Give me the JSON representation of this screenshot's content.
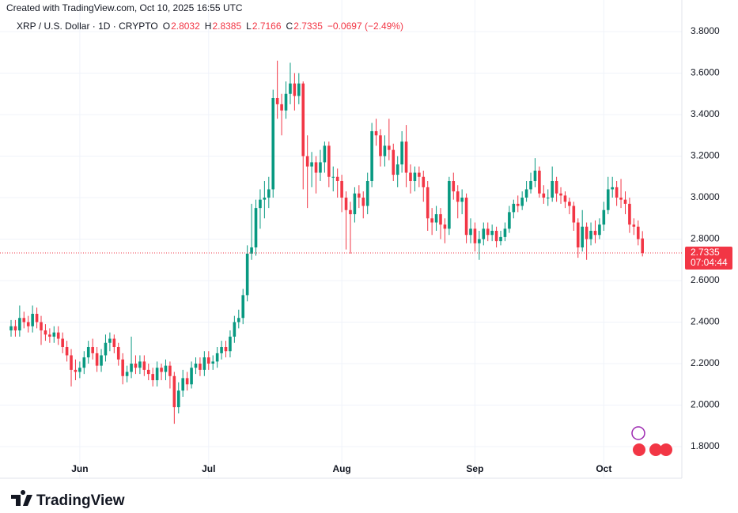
{
  "chart_data": {
    "type": "candlestick",
    "watermark": "Created with TradingView.com, Oct 10, 2025 16:55 UTC",
    "symbol": "XRP / U.S. Dollar · 1D · CRYPTO",
    "ohlc_keys": [
      "O",
      "H",
      "L",
      "C"
    ],
    "change": "−0.0697 (−2.49%)",
    "countdown": "07:04:44",
    "logo": "TradingView",
    "up_color": "#089981",
    "down_color": "#f23645",
    "grid": true,
    "ylim": [
      1.72,
      3.87
    ],
    "yticks": [
      {
        "value": 1.8,
        "label": "1.8000"
      },
      {
        "value": 2.0,
        "label": "2.0000"
      },
      {
        "value": 2.2,
        "label": "2.2000"
      },
      {
        "value": 2.4,
        "label": "2.4000"
      },
      {
        "value": 2.6,
        "label": "2.6000"
      },
      {
        "value": 2.8,
        "label": "2.8000"
      },
      {
        "value": 3.0,
        "label": "3.0000"
      },
      {
        "value": 3.2,
        "label": "3.2000"
      },
      {
        "value": 3.4,
        "label": "3.4000"
      },
      {
        "value": 3.6,
        "label": "3.6000"
      },
      {
        "value": 3.8,
        "label": "3.8000"
      }
    ],
    "categories": [
      null,
      null,
      null,
      null,
      null,
      null,
      null,
      null,
      null,
      null,
      null,
      null,
      null,
      null,
      null,
      null,
      "Jun",
      null,
      null,
      null,
      null,
      null,
      null,
      null,
      null,
      null,
      null,
      null,
      null,
      null,
      null,
      null,
      null,
      null,
      null,
      null,
      null,
      null,
      null,
      null,
      null,
      null,
      null,
      null,
      null,
      null,
      "Jul",
      null,
      null,
      null,
      null,
      null,
      null,
      null,
      null,
      null,
      null,
      null,
      null,
      null,
      null,
      null,
      null,
      null,
      null,
      null,
      null,
      null,
      null,
      null,
      null,
      null,
      null,
      null,
      null,
      null,
      null,
      "Aug",
      null,
      null,
      null,
      null,
      null,
      null,
      null,
      null,
      null,
      null,
      null,
      null,
      null,
      null,
      null,
      null,
      null,
      null,
      null,
      null,
      null,
      null,
      null,
      null,
      null,
      null,
      null,
      null,
      null,
      null,
      "Sep",
      null,
      null,
      null,
      null,
      null,
      null,
      null,
      null,
      null,
      null,
      null,
      null,
      null,
      null,
      null,
      null,
      null,
      null,
      null,
      null,
      null,
      null,
      null,
      null,
      null,
      null,
      null,
      null,
      null,
      "Oct",
      null,
      null,
      null,
      null,
      null,
      null,
      null,
      null,
      null
    ],
    "open": [
      2.36,
      2.38,
      2.36,
      2.42,
      2.4,
      2.38,
      2.44,
      2.4,
      2.36,
      2.34,
      2.33,
      2.35,
      2.32,
      2.28,
      2.24,
      2.17,
      2.16,
      2.18,
      2.23,
      2.28,
      2.25,
      2.19,
      2.24,
      2.3,
      2.32,
      2.28,
      2.22,
      2.14,
      2.16,
      2.2,
      2.18,
      2.21,
      2.17,
      2.15,
      2.12,
      2.18,
      2.16,
      2.19,
      2.14,
      1.99,
      2.07,
      2.13,
      2.1,
      2.18,
      2.2,
      2.17,
      2.23,
      2.2,
      2.21,
      2.25,
      2.28,
      2.26,
      2.33,
      2.4,
      2.42,
      2.53,
      2.73,
      2.76,
      2.95,
      2.99,
      3.0,
      3.04,
      3.48,
      3.45,
      3.42,
      3.5,
      3.55,
      3.49,
      3.55,
      3.2,
      3.15,
      3.17,
      3.12,
      3.17,
      3.25,
      3.1,
      3.1,
      3.08,
      3.0,
      2.94,
      2.92,
      3.02,
      3.0,
      2.96,
      3.08,
      3.32,
      3.3,
      3.2,
      3.25,
      3.23,
      3.11,
      3.16,
      3.27,
      3.12,
      3.08,
      3.12,
      3.1,
      3.05,
      2.9,
      2.88,
      2.92,
      2.87,
      2.85,
      3.08,
      3.03,
      2.98,
      3.0,
      2.82,
      2.85,
      2.78,
      2.8,
      2.85,
      2.82,
      2.84,
      2.79,
      2.81,
      2.85,
      2.93,
      2.97,
      2.96,
      3.0,
      3.04,
      3.08,
      3.13,
      3.02,
      3.0,
      3.0,
      3.08,
      3.02,
      3.01,
      2.98,
      2.96,
      2.88,
      2.76,
      2.86,
      2.8,
      2.84,
      2.82,
      2.87,
      2.94,
      3.04,
      3.05,
      3.0,
      2.99,
      2.97,
      2.87,
      2.86,
      2.8032
    ],
    "high": [
      2.41,
      2.41,
      2.48,
      2.45,
      2.43,
      2.48,
      2.47,
      2.43,
      2.39,
      2.37,
      2.38,
      2.38,
      2.35,
      2.31,
      2.27,
      2.22,
      2.21,
      2.26,
      2.31,
      2.32,
      2.28,
      2.27,
      2.34,
      2.35,
      2.34,
      2.3,
      2.25,
      2.19,
      2.33,
      2.24,
      2.24,
      2.24,
      2.2,
      2.18,
      2.21,
      2.2,
      2.22,
      2.21,
      2.16,
      2.11,
      2.17,
      2.16,
      2.21,
      2.23,
      2.23,
      2.26,
      2.26,
      2.24,
      2.28,
      2.31,
      2.31,
      2.36,
      2.43,
      2.46,
      2.56,
      2.77,
      2.97,
      2.99,
      3.04,
      3.08,
      3.1,
      3.52,
      3.66,
      3.5,
      3.56,
      3.65,
      3.6,
      3.6,
      3.56,
      3.3,
      3.22,
      3.2,
      3.23,
      3.27,
      3.27,
      3.15,
      3.14,
      3.11,
      3.03,
      2.98,
      3.05,
      3.06,
      3.03,
      3.12,
      3.36,
      3.38,
      3.33,
      3.3,
      3.38,
      3.26,
      3.2,
      3.32,
      3.35,
      3.16,
      3.15,
      3.15,
      3.13,
      3.08,
      2.95,
      2.96,
      2.95,
      2.9,
      3.1,
      3.12,
      3.06,
      3.04,
      3.02,
      2.9,
      2.88,
      2.84,
      2.88,
      2.88,
      2.87,
      2.86,
      2.84,
      2.88,
      2.96,
      2.99,
      3.01,
      3.03,
      3.08,
      3.12,
      3.19,
      3.15,
      3.06,
      3.04,
      3.15,
      3.1,
      3.05,
      3.03,
      3.0,
      2.98,
      2.9,
      2.94,
      2.88,
      2.88,
      2.89,
      2.9,
      2.98,
      3.1,
      3.1,
      3.08,
      3.09,
      3.03,
      3.0,
      2.9,
      2.89,
      2.8385
    ],
    "low": [
      2.33,
      2.33,
      2.33,
      2.37,
      2.35,
      2.35,
      2.37,
      2.29,
      2.31,
      2.3,
      2.3,
      2.29,
      2.25,
      2.21,
      2.09,
      2.12,
      2.13,
      2.15,
      2.2,
      2.22,
      2.16,
      2.16,
      2.21,
      2.26,
      2.25,
      2.19,
      2.1,
      2.11,
      2.13,
      2.15,
      2.15,
      2.14,
      2.12,
      2.09,
      2.09,
      2.12,
      2.12,
      2.08,
      1.91,
      1.96,
      2.04,
      2.07,
      2.08,
      2.15,
      2.14,
      2.14,
      2.17,
      2.17,
      2.18,
      2.22,
      2.23,
      2.23,
      2.3,
      2.37,
      2.39,
      2.5,
      2.7,
      2.72,
      2.85,
      2.9,
      2.95,
      3.0,
      3.38,
      3.3,
      3.38,
      3.45,
      3.42,
      3.45,
      3.04,
      2.95,
      3.05,
      3.02,
      3.08,
      3.12,
      3.05,
      3.03,
      3.0,
      2.93,
      2.75,
      2.73,
      2.88,
      2.95,
      2.9,
      2.92,
      3.05,
      3.25,
      3.15,
      3.15,
      3.18,
      3.08,
      3.05,
      3.12,
      3.05,
      3.02,
      3.03,
      3.05,
      2.98,
      2.84,
      2.82,
      2.84,
      2.8,
      2.78,
      2.82,
      2.99,
      2.9,
      2.92,
      2.78,
      2.78,
      2.74,
      2.7,
      2.77,
      2.79,
      2.79,
      2.76,
      2.77,
      2.79,
      2.83,
      2.9,
      2.93,
      2.94,
      2.98,
      3.02,
      3.05,
      3.0,
      2.97,
      2.96,
      2.98,
      2.98,
      2.97,
      2.95,
      2.92,
      2.84,
      2.71,
      2.74,
      2.7,
      2.77,
      2.78,
      2.8,
      2.84,
      2.92,
      3.0,
      2.96,
      2.95,
      2.92,
      2.83,
      2.82,
      2.77,
      2.7166
    ],
    "close": [
      2.38,
      2.36,
      2.42,
      2.4,
      2.38,
      2.44,
      2.4,
      2.36,
      2.34,
      2.33,
      2.35,
      2.32,
      2.28,
      2.24,
      2.17,
      2.16,
      2.18,
      2.23,
      2.28,
      2.25,
      2.19,
      2.24,
      2.3,
      2.32,
      2.28,
      2.22,
      2.14,
      2.16,
      2.2,
      2.18,
      2.21,
      2.17,
      2.15,
      2.12,
      2.18,
      2.16,
      2.19,
      2.14,
      1.99,
      2.07,
      2.13,
      2.1,
      2.18,
      2.2,
      2.17,
      2.23,
      2.2,
      2.21,
      2.25,
      2.28,
      2.26,
      2.33,
      2.4,
      2.42,
      2.53,
      2.73,
      2.76,
      2.95,
      2.99,
      3.0,
      3.04,
      3.48,
      3.45,
      3.42,
      3.5,
      3.55,
      3.49,
      3.55,
      3.2,
      3.15,
      3.17,
      3.12,
      3.17,
      3.25,
      3.1,
      3.1,
      3.08,
      3.0,
      2.94,
      2.92,
      3.02,
      3.0,
      2.96,
      3.08,
      3.32,
      3.3,
      3.2,
      3.25,
      3.23,
      3.11,
      3.16,
      3.27,
      3.12,
      3.08,
      3.12,
      3.1,
      3.05,
      2.9,
      2.88,
      2.92,
      2.87,
      2.85,
      3.08,
      3.03,
      2.98,
      3.0,
      2.82,
      2.85,
      2.78,
      2.8,
      2.85,
      2.82,
      2.84,
      2.79,
      2.81,
      2.85,
      2.93,
      2.97,
      2.96,
      3.0,
      3.04,
      3.08,
      3.13,
      3.02,
      3.0,
      3.0,
      3.08,
      3.02,
      3.01,
      2.98,
      2.96,
      2.88,
      2.76,
      2.86,
      2.8,
      2.84,
      2.82,
      2.87,
      2.94,
      3.04,
      3.05,
      3.0,
      2.99,
      2.97,
      2.87,
      2.86,
      2.8,
      2.7335
    ]
  }
}
